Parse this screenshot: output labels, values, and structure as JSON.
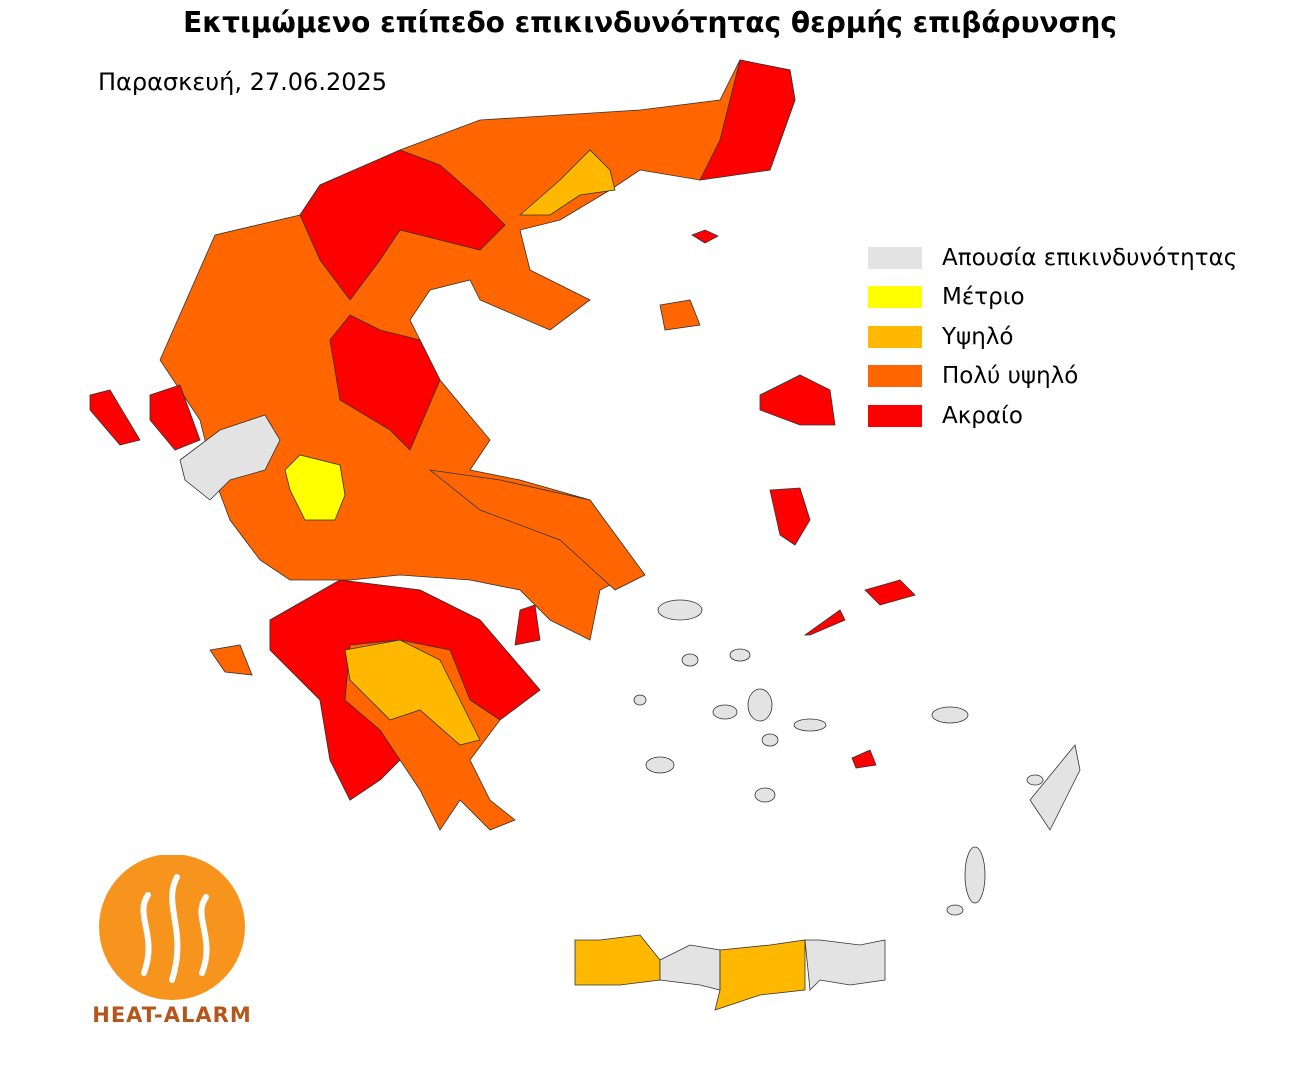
{
  "title": "Εκτιμώμενο επίπεδο επικινδυνότητας θερμής επιβάρυνσης",
  "date": "Παρασκευή, 27.06.2025",
  "legend": [
    {
      "key": "none",
      "label": "Απουσία επικινδυνότητας",
      "color": "#e3e3e3"
    },
    {
      "key": "moderate",
      "label": "Μέτριο",
      "color": "#ffff00"
    },
    {
      "key": "high",
      "label": "Υψηλό",
      "color": "#ffb800"
    },
    {
      "key": "very_high",
      "label": "Πολύ υψηλό",
      "color": "#ff6600"
    },
    {
      "key": "extreme",
      "label": "Ακραίο",
      "color": "#ff0000"
    }
  ],
  "regions": [
    {
      "level": "very_high"
    },
    {
      "level": "very_high"
    },
    {
      "level": "very_high"
    },
    {
      "level": "extreme"
    },
    {
      "level": "extreme"
    },
    {
      "level": "extreme"
    },
    {
      "level": "extreme"
    },
    {
      "level": "extreme"
    },
    {
      "level": "extreme"
    },
    {
      "level": "moderate"
    },
    {
      "level": "none"
    },
    {
      "level": "high"
    },
    {
      "level": "high"
    },
    {
      "level": "high"
    },
    {
      "level": "none"
    },
    {
      "level": "high"
    },
    {
      "level": "none"
    },
    {
      "level": "extreme"
    },
    {
      "level": "extreme"
    },
    {
      "level": "extreme"
    },
    {
      "level": "extreme"
    },
    {
      "level": "extreme"
    },
    {
      "level": "extreme"
    },
    {
      "level": "none"
    },
    {
      "level": "very_high"
    },
    {
      "level": "very_high"
    },
    {
      "level": "extreme"
    }
  ],
  "logo": {
    "text": "HEAT-ALARM",
    "color": "#f7941d"
  }
}
